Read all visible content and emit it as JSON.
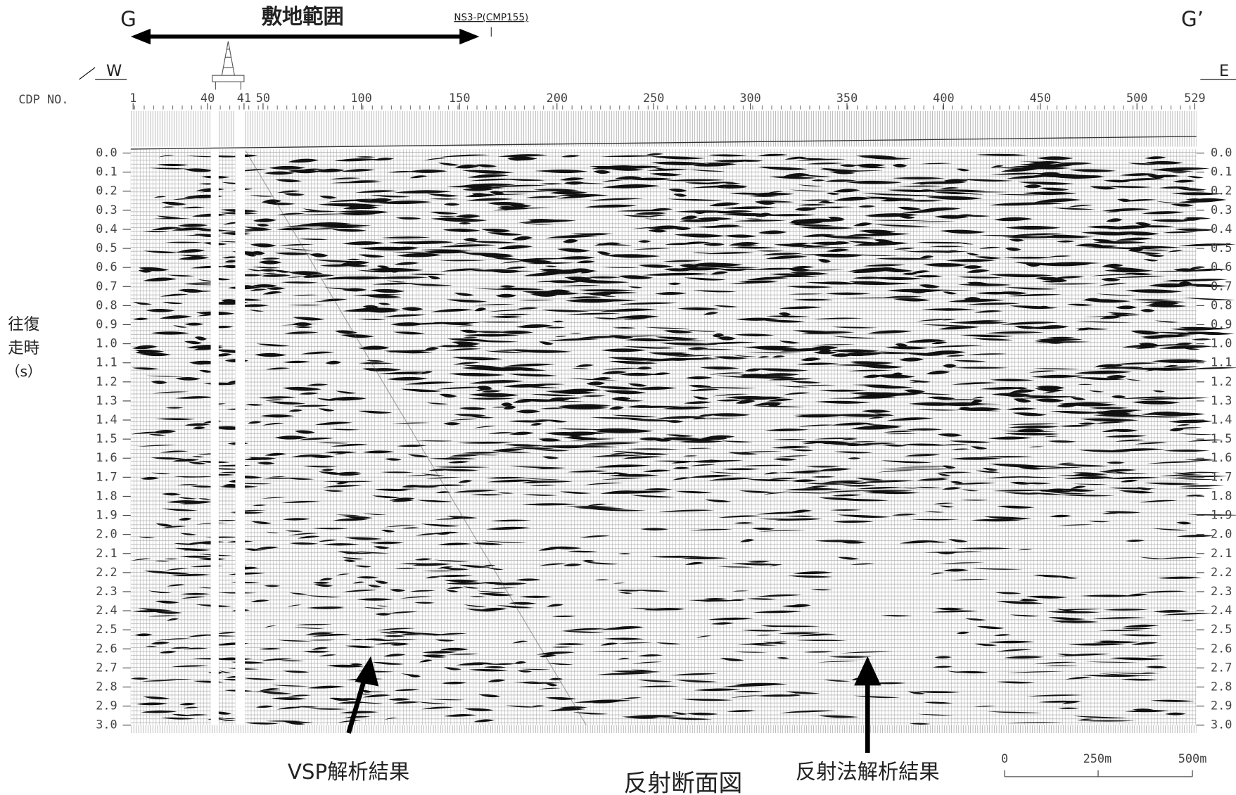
{
  "header": {
    "left_label": "G",
    "right_label": "G’",
    "site_range": "敷地範囲",
    "well": "NS3-P(CMP155)",
    "west": "W",
    "east": "E"
  },
  "axis": {
    "cdp_label": "CDP NO.",
    "cdp_ticks": [
      "1",
      "40",
      "41",
      "50",
      "100",
      "150",
      "200",
      "250",
      "300",
      "350",
      "400",
      "450",
      "500",
      "529"
    ],
    "time_label_1": "往復",
    "time_label_2": "走時",
    "time_label_3": "（s）",
    "time_ticks": [
      "0.0",
      "0.1",
      "0.2",
      "0.3",
      "0.4",
      "0.5",
      "0.6",
      "0.7",
      "0.8",
      "0.9",
      "1.0",
      "1.1",
      "1.2",
      "1.3",
      "1.4",
      "1.5",
      "1.6",
      "1.7",
      "1.8",
      "1.9",
      "2.0",
      "2.1",
      "2.2",
      "2.3",
      "2.4",
      "2.5",
      "2.6",
      "2.7",
      "2.8",
      "2.9",
      "3.0"
    ]
  },
  "annotations": {
    "vsp": "VSP解析結果",
    "reflection": "反射法解析結果",
    "title": "反射断面図"
  },
  "scale": {
    "zero": "0",
    "mid": "250m",
    "end": "500m"
  }
}
